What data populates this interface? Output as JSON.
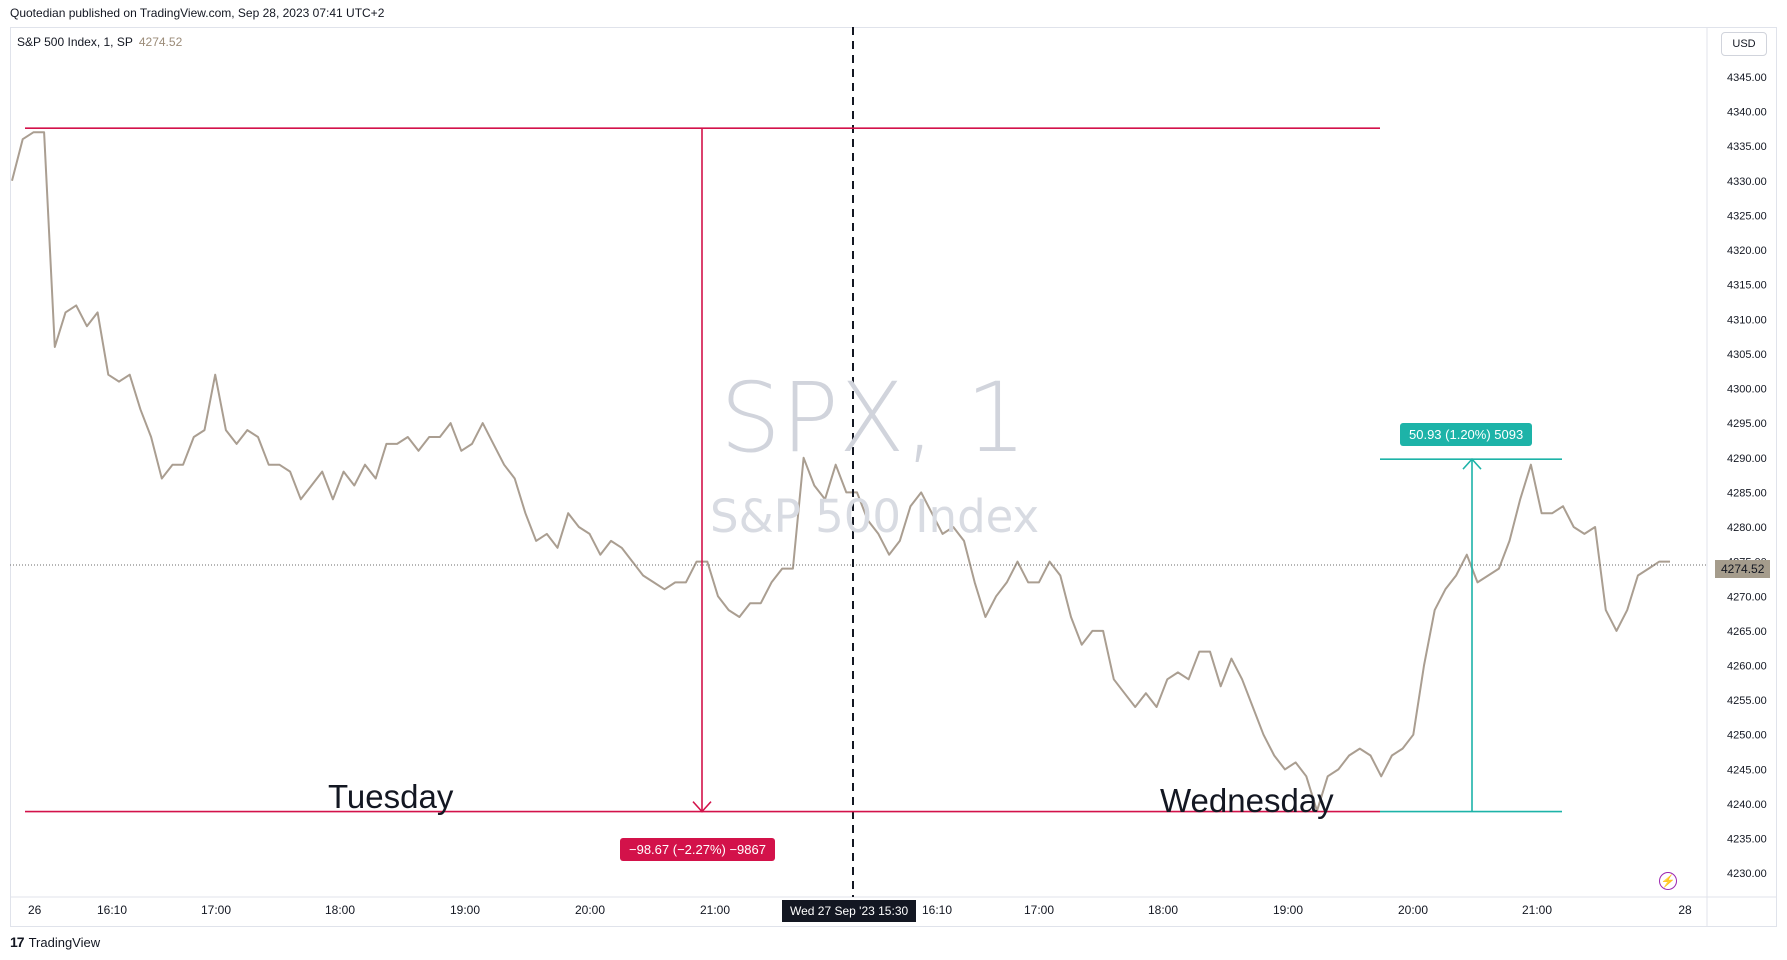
{
  "header": {
    "publisher_text": "Quotedian published on TradingView.com, Sep 28, 2023 07:41 UTC+2"
  },
  "legend": {
    "symbol": "S&P 500 Index, 1, SP",
    "last_value": "4274.52"
  },
  "currency": "USD",
  "watermark": {
    "title": "SPX, 1",
    "subtitle": "S&P 500 Index"
  },
  "annotations": {
    "day1": "Tuesday",
    "day2": "Wednesday",
    "drop_badge": "−98.67 (−2.27%) −9867",
    "rise_badge": "50.93 (1.20%) 5093",
    "crosshair_time": "Wed 27 Sep '23   15:30"
  },
  "footer": {
    "logo_text": "TradingView"
  },
  "colors": {
    "line": "#aa9e91",
    "red": "#d3124a",
    "teal": "#1db3a8",
    "grid": "#e0e3eb"
  },
  "chart_data": {
    "type": "line",
    "title": "S&P 500 Index, 1, SP",
    "ylabel": "",
    "xlabel": "",
    "ylim": [
      4227,
      4346
    ],
    "y_ticks": [
      4230,
      4235,
      4240,
      4245,
      4250,
      4255,
      4260,
      4265,
      4270,
      4275,
      4280,
      4285,
      4290,
      4295,
      4300,
      4305,
      4310,
      4315,
      4320,
      4325,
      4330,
      4335,
      4340,
      4345
    ],
    "x_ticks": [
      "26",
      "16:10",
      "17:00",
      "18:00",
      "19:00",
      "20:00",
      "21:00",
      "16:10",
      "17:00",
      "18:00",
      "19:00",
      "20:00",
      "21:00",
      "28"
    ],
    "grid": false,
    "last_price": 4274.52,
    "series": [
      {
        "values": [
          4330,
          4336,
          4337,
          4337,
          4306,
          4311,
          4312,
          4309,
          4311,
          4302,
          4301,
          4302,
          4297,
          4293,
          4287,
          4289,
          4289,
          4293,
          4294,
          4302,
          4294,
          4292,
          4294,
          4293,
          4289,
          4289,
          4288,
          4284,
          4286,
          4288,
          4284,
          4288,
          4286,
          4289,
          4287,
          4292,
          4292,
          4293,
          4291,
          4293,
          4293,
          4295,
          4291,
          4292,
          4295,
          4292,
          4289,
          4287,
          4282,
          4278,
          4279,
          4277,
          4282,
          4280,
          4279,
          4276,
          4278,
          4277,
          4275,
          4273,
          4272,
          4271,
          4272,
          4272,
          4275,
          4275,
          4270,
          4268,
          4267,
          4269,
          4269,
          4272,
          4274,
          4274,
          4290,
          4286,
          4284,
          4289,
          4285,
          4285,
          4281,
          4279,
          4276,
          4278,
          4283,
          4285,
          4282,
          4279,
          4280,
          4278,
          4272,
          4267,
          4270,
          4272,
          4275,
          4272,
          4272,
          4275,
          4273,
          4267,
          4263,
          4265,
          4265,
          4258,
          4256,
          4254,
          4256,
          4254,
          4258,
          4259,
          4258,
          4262,
          4262,
          4257,
          4261,
          4258,
          4254,
          4250,
          4247,
          4245,
          4246,
          4244,
          4239,
          4244,
          4245,
          4247,
          4248,
          4247,
          4244,
          4247,
          4248,
          4250,
          4260,
          4268,
          4271,
          4273,
          4276,
          4272,
          4273,
          4274,
          4278,
          4284,
          4289,
          4282,
          4282,
          4283,
          4280,
          4279,
          4280,
          4268,
          4265,
          4268,
          4273,
          4274,
          4275,
          4275
        ]
      }
    ]
  }
}
